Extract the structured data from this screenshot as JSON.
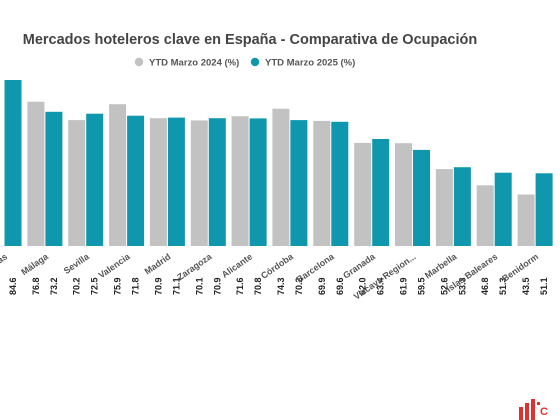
{
  "chart_data": {
    "type": "bar",
    "title": "Mercados hoteleros clave en España - Comparativa de Ocupación",
    "categories": [
      "as",
      "Málaga",
      "Sevilla",
      "Valencia",
      "Madrid",
      "Zaragoza",
      "Alicante",
      "Córdoba",
      "Barcelona",
      "Granada",
      "Vizcaya Region...",
      "Marbella",
      "Islas Baleares",
      "Benidorm"
    ],
    "series": [
      {
        "name": "YTD Marzo 2024 (%)",
        "color": "#c2c2c2",
        "values": [
          null,
          76.8,
          70.2,
          75.9,
          70.9,
          70.1,
          71.6,
          74.3,
          69.9,
          62.0,
          61.9,
          52.6,
          46.8,
          43.5
        ]
      },
      {
        "name": "YTD Marzo 2025 (%)",
        "color": "#0f97ad",
        "values": [
          84.6,
          73.2,
          72.5,
          71.8,
          71.1,
          70.9,
          70.8,
          70.2,
          69.6,
          63.4,
          59.5,
          53.3,
          51.3,
          51.1
        ]
      }
    ],
    "legend_position": "top",
    "grid": false,
    "xlabel": "",
    "ylabel": ""
  },
  "logo": {
    "brand_color": "#e0312e",
    "letter": "C"
  }
}
